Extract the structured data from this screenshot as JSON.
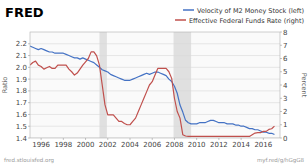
{
  "chart_data": {
    "type": "line",
    "title": "FRED",
    "ylabel": "Ratio",
    "y2label": "Percent",
    "annotations": [
      "fred.stlouisfed.org",
      "myf.red/g/hGgG8"
    ],
    "x": [
      1995.0,
      1995.25,
      1995.5,
      1995.75,
      1996.0,
      1996.25,
      1996.5,
      1996.75,
      1997.0,
      1997.25,
      1997.5,
      1997.75,
      1998.0,
      1998.25,
      1998.5,
      1998.75,
      1999.0,
      1999.25,
      1999.5,
      1999.75,
      2000.0,
      2000.25,
      2000.5,
      2000.75,
      2001.0,
      2001.25,
      2001.5,
      2001.75,
      2002.0,
      2002.25,
      2002.5,
      2002.75,
      2003.0,
      2003.25,
      2003.5,
      2003.75,
      2004.0,
      2004.25,
      2004.5,
      2004.75,
      2005.0,
      2005.25,
      2005.5,
      2005.75,
      2006.0,
      2006.25,
      2006.5,
      2006.75,
      2007.0,
      2007.25,
      2007.5,
      2007.75,
      2008.0,
      2008.25,
      2008.5,
      2008.75,
      2009.0,
      2009.25,
      2009.5,
      2009.75,
      2010.0,
      2010.25,
      2010.5,
      2010.75,
      2011.0,
      2011.25,
      2011.5,
      2011.75,
      2012.0,
      2012.25,
      2012.5,
      2012.75,
      2013.0,
      2013.25,
      2013.5,
      2013.75,
      2014.0,
      2014.25,
      2014.5,
      2014.75,
      2015.0,
      2015.25,
      2015.5,
      2015.75,
      2016.0,
      2016.25,
      2016.5,
      2016.75,
      2017.0
    ],
    "series": [
      {
        "name": "Velocity of M2 Money Stock (left)",
        "color": "#4472c4",
        "values": [
          2.18,
          2.17,
          2.16,
          2.15,
          2.16,
          2.15,
          2.14,
          2.13,
          2.13,
          2.12,
          2.12,
          2.12,
          2.12,
          2.11,
          2.1,
          2.09,
          2.08,
          2.08,
          2.07,
          2.08,
          2.07,
          2.06,
          2.05,
          2.04,
          2.02,
          2.0,
          1.98,
          1.97,
          1.96,
          1.94,
          1.93,
          1.92,
          1.91,
          1.9,
          1.89,
          1.89,
          1.89,
          1.9,
          1.91,
          1.92,
          1.93,
          1.94,
          1.95,
          1.94,
          1.95,
          1.96,
          1.96,
          1.95,
          1.94,
          1.93,
          1.9,
          1.88,
          1.84,
          1.78,
          1.68,
          1.62,
          1.55,
          1.53,
          1.52,
          1.52,
          1.52,
          1.53,
          1.53,
          1.53,
          1.54,
          1.55,
          1.55,
          1.54,
          1.53,
          1.53,
          1.53,
          1.52,
          1.52,
          1.52,
          1.51,
          1.51,
          1.5,
          1.5,
          1.49,
          1.48,
          1.48,
          1.47,
          1.47,
          1.46,
          1.45,
          1.45,
          1.44,
          1.44,
          1.43
        ]
      },
      {
        "name": "Effective Federal Funds Rate (right)",
        "color": "#c0504d",
        "axis": "y2",
        "values": [
          5.5,
          5.7,
          5.8,
          5.5,
          5.4,
          5.2,
          5.3,
          5.4,
          5.25,
          5.25,
          5.5,
          5.5,
          5.5,
          5.5,
          5.2,
          5.0,
          4.75,
          4.9,
          5.2,
          5.5,
          5.75,
          6.0,
          6.5,
          6.5,
          6.2,
          5.5,
          4.0,
          2.5,
          1.75,
          1.75,
          1.75,
          1.5,
          1.25,
          1.25,
          1.1,
          1.0,
          1.0,
          1.25,
          1.5,
          2.0,
          2.5,
          3.0,
          3.5,
          4.0,
          4.25,
          4.75,
          5.25,
          5.25,
          5.25,
          5.25,
          5.0,
          4.5,
          3.0,
          2.0,
          1.5,
          0.25,
          0.15,
          0.12,
          0.12,
          0.12,
          0.12,
          0.12,
          0.12,
          0.12,
          0.12,
          0.12,
          0.12,
          0.12,
          0.12,
          0.12,
          0.12,
          0.12,
          0.12,
          0.12,
          0.12,
          0.12,
          0.12,
          0.12,
          0.12,
          0.12,
          0.25,
          0.37,
          0.4,
          0.4,
          0.5,
          0.5,
          0.65,
          0.7,
          0.9
        ]
      }
    ],
    "recession_bands": [
      [
        2001.25,
        2001.92
      ],
      [
        2007.92,
        2009.5
      ]
    ],
    "xlim": [
      1995.0,
      2017.5
    ],
    "xticks": [
      1996,
      1998,
      2000,
      2002,
      2004,
      2006,
      2008,
      2010,
      2012,
      2014,
      2016
    ],
    "ylim": [
      1.4,
      2.3
    ],
    "yticks": [
      1.4,
      1.5,
      1.6,
      1.7,
      1.8,
      1.9,
      {
        "value": 2.0,
        "label": "2.0"
      },
      2.1,
      2.2
    ],
    "y2lim": [
      0,
      8
    ],
    "y2ticks": [
      0,
      1,
      2,
      3,
      4,
      5,
      6,
      7,
      8
    ],
    "grid": true,
    "legend": "upper right"
  }
}
